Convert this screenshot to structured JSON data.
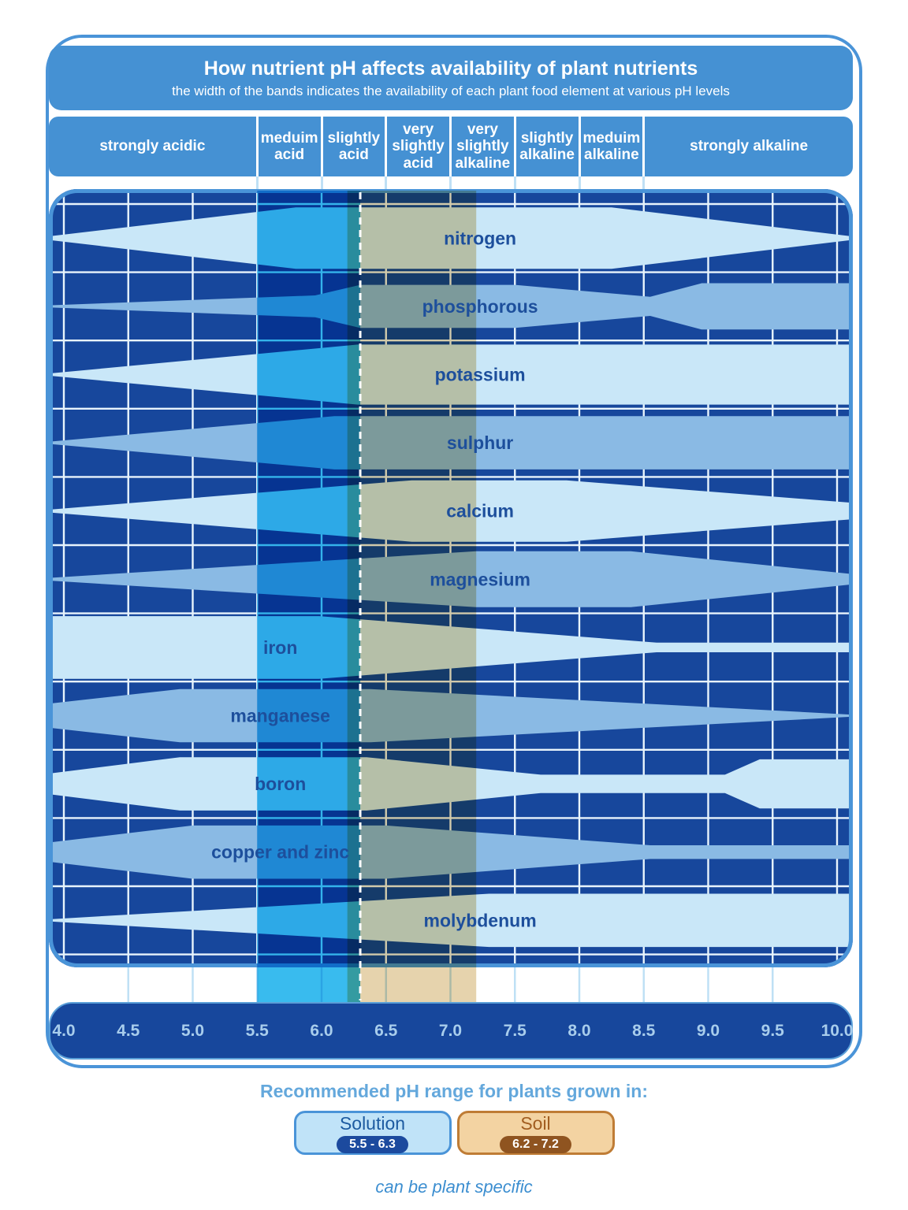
{
  "header": {
    "title": "How nutrient pH affects availability of plant nutrients",
    "subtitle": "the width of the bands indicates the availability of each plant food element at various pH levels"
  },
  "category_bar": {
    "items": [
      {
        "label": "strongly acidic",
        "from": 4.0,
        "to": 5.5
      },
      {
        "label": "meduim\nacid",
        "from": 5.5,
        "to": 6.0
      },
      {
        "label": "slightly\nacid",
        "from": 6.0,
        "to": 6.5
      },
      {
        "label": "very\nslightly\nacid",
        "from": 6.5,
        "to": 7.0
      },
      {
        "label": "very\nslightly\nalkaline",
        "from": 7.0,
        "to": 7.5
      },
      {
        "label": "slightly\nalkaline",
        "from": 7.5,
        "to": 8.0
      },
      {
        "label": "meduim\nalkaline",
        "from": 8.0,
        "to": 8.5
      },
      {
        "label": "strongly alkaline",
        "from": 8.5,
        "to": 10.0
      }
    ]
  },
  "chart_data": {
    "type": "area",
    "title": "How nutrient pH affects availability of plant nutrients",
    "x_axis": {
      "label": "pH",
      "min": 4.0,
      "max": 10.0,
      "step": 0.5,
      "tick_labels": [
        "4.0",
        "4.5",
        "5.0",
        "5.5",
        "6.0",
        "6.5",
        "7.0",
        "7.5",
        "8.0",
        "8.5",
        "9.0",
        "9.5",
        "10.0"
      ]
    },
    "y_axis": {
      "label": "relative availability shown as band width",
      "per_row_range": [
        0,
        1
      ]
    },
    "series": [
      {
        "name": "nitrogen",
        "tone": "light",
        "label_ph": 7.23,
        "profile": [
          [
            3.88,
            0.05
          ],
          [
            5.8,
            0.9
          ],
          [
            8.25,
            0.9
          ],
          [
            10.12,
            0.05
          ]
        ]
      },
      {
        "name": "phosphorous",
        "tone": "medium",
        "label_ph": 7.23,
        "profile": [
          [
            3.88,
            0.03
          ],
          [
            5.95,
            0.32
          ],
          [
            6.3,
            0.63
          ],
          [
            7.5,
            0.63
          ],
          [
            8.55,
            0.28
          ],
          [
            8.95,
            0.68
          ],
          [
            10.12,
            0.68
          ]
        ]
      },
      {
        "name": "potassium",
        "tone": "light",
        "label_ph": 7.23,
        "profile": [
          [
            3.88,
            0.03
          ],
          [
            6.28,
            0.88
          ],
          [
            10.12,
            0.88
          ]
        ]
      },
      {
        "name": "sulphur",
        "tone": "medium",
        "label_ph": 7.23,
        "profile": [
          [
            3.88,
            0.03
          ],
          [
            6.1,
            0.78
          ],
          [
            10.12,
            0.78
          ]
        ]
      },
      {
        "name": "calcium",
        "tone": "light",
        "label_ph": 7.23,
        "profile": [
          [
            3.88,
            0.04
          ],
          [
            6.7,
            0.9
          ],
          [
            7.9,
            0.9
          ],
          [
            10.12,
            0.24
          ]
        ]
      },
      {
        "name": "magnesium",
        "tone": "medium",
        "label_ph": 7.23,
        "profile": [
          [
            3.88,
            0.04
          ],
          [
            7.2,
            0.82
          ],
          [
            8.4,
            0.82
          ],
          [
            10.12,
            0.15
          ]
        ]
      },
      {
        "name": "iron",
        "tone": "light",
        "label_ph": 5.68,
        "profile": [
          [
            3.88,
            0.92
          ],
          [
            5.98,
            0.92
          ],
          [
            8.6,
            0.14
          ],
          [
            10.12,
            0.14
          ]
        ]
      },
      {
        "name": "manganese",
        "tone": "medium",
        "label_ph": 5.68,
        "profile": [
          [
            3.88,
            0.35
          ],
          [
            4.9,
            0.78
          ],
          [
            6.38,
            0.78
          ],
          [
            10.12,
            0.03
          ]
        ]
      },
      {
        "name": "boron",
        "tone": "light",
        "label_ph": 5.68,
        "profile": [
          [
            3.88,
            0.3
          ],
          [
            4.9,
            0.78
          ],
          [
            6.35,
            0.78
          ],
          [
            7.7,
            0.27
          ],
          [
            9.13,
            0.27
          ],
          [
            9.4,
            0.72
          ],
          [
            10.12,
            0.72
          ]
        ]
      },
      {
        "name": "copper and zinc",
        "tone": "medium",
        "label_ph": 5.68,
        "profile": [
          [
            3.88,
            0.28
          ],
          [
            5.0,
            0.78
          ],
          [
            6.5,
            0.78
          ],
          [
            8.55,
            0.2
          ],
          [
            10.12,
            0.2
          ]
        ]
      },
      {
        "name": "molybdenum",
        "tone": "light",
        "label_ph": 7.23,
        "profile": [
          [
            3.88,
            0.03
          ],
          [
            7.3,
            0.78
          ],
          [
            10.12,
            0.78
          ]
        ]
      }
    ],
    "overlays": [
      {
        "name": "solution",
        "from": 5.5,
        "to": 6.3,
        "color": "#39bbee"
      },
      {
        "name": "soil",
        "from": 6.2,
        "to": 7.2,
        "color": "#e6d3ad"
      }
    ],
    "marker": {
      "ph": 6.3,
      "style": "white-dashed"
    }
  },
  "palette": {
    "navy": "#17479c",
    "header_blue": "#4591d3",
    "band_light": "#c9e7f8",
    "band_medium": "#8abae4",
    "band_label": "#1d4f9c",
    "grid": "#e8f4fc",
    "tick": "#bfe0f5",
    "border_blue": "#4a94d8",
    "axis_text": "#a8cdec"
  },
  "legend": {
    "title": "Recommended pH range for plants grown in:",
    "solution": {
      "label": "Solution",
      "range": "5.5 - 6.3"
    },
    "soil": {
      "label": "Soil",
      "range": "6.2 - 7.2"
    },
    "footnote": "can be plant specific"
  }
}
